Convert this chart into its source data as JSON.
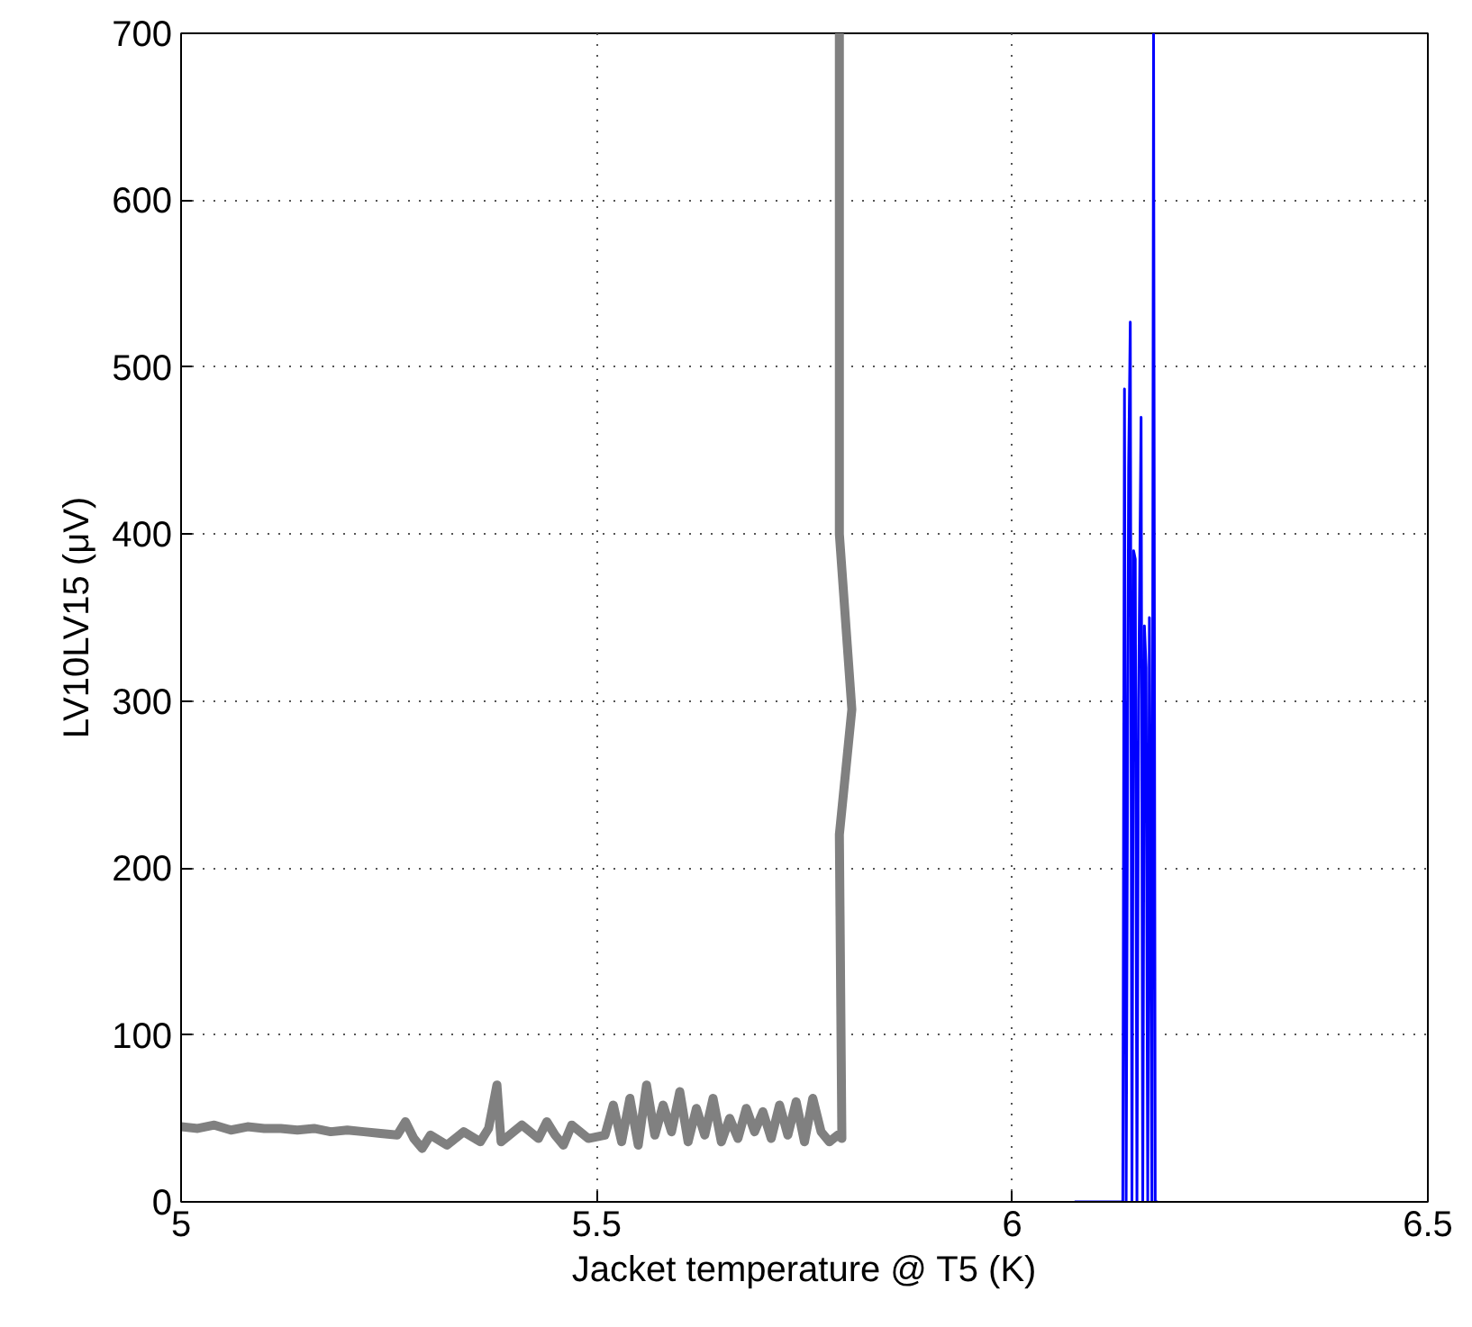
{
  "chart_data": {
    "type": "line",
    "xlabel": "Jacket temperature @ T5 (K)",
    "ylabel": "LV10LV15 (μV)",
    "xlim": [
      5,
      6.5
    ],
    "ylim": [
      0,
      700
    ],
    "xticks": [
      5,
      5.5,
      6,
      6.5
    ],
    "yticks": [
      0,
      100,
      200,
      300,
      400,
      500,
      600,
      700
    ],
    "grid": true,
    "marker": "none",
    "line_style": "solid",
    "series": [
      {
        "color": "#808080",
        "x": [
          5.0,
          5.02,
          5.04,
          5.06,
          5.08,
          5.1,
          5.12,
          5.14,
          5.16,
          5.18,
          5.2,
          5.22,
          5.24,
          5.26,
          5.27,
          5.28,
          5.29,
          5.3,
          5.32,
          5.34,
          5.36,
          5.37,
          5.38,
          5.385,
          5.39,
          5.41,
          5.43,
          5.44,
          5.45,
          5.46,
          5.47,
          5.49,
          5.51,
          5.52,
          5.53,
          5.54,
          5.55,
          5.56,
          5.57,
          5.58,
          5.59,
          5.6,
          5.61,
          5.62,
          5.63,
          5.64,
          5.65,
          5.66,
          5.67,
          5.68,
          5.69,
          5.7,
          5.71,
          5.72,
          5.73,
          5.74,
          5.75,
          5.76,
          5.77,
          5.78,
          5.79,
          5.795,
          5.792,
          5.807,
          5.792,
          5.792
        ],
        "values": [
          45,
          44,
          46,
          43,
          45,
          44,
          44,
          43,
          44,
          42,
          43,
          42,
          41,
          40,
          48,
          38,
          32,
          40,
          34,
          42,
          36,
          44,
          70,
          36,
          38,
          46,
          38,
          48,
          40,
          34,
          46,
          38,
          40,
          58,
          36,
          62,
          34,
          70,
          40,
          58,
          42,
          66,
          36,
          56,
          40,
          62,
          36,
          50,
          38,
          56,
          42,
          54,
          38,
          58,
          40,
          60,
          36,
          62,
          42,
          36,
          40,
          38,
          220,
          295,
          400,
          700
        ]
      },
      {
        "color": "#0000ff",
        "x": [
          6.075,
          6.133,
          6.135,
          6.137,
          6.14,
          6.142,
          6.144,
          6.146,
          6.148,
          6.15,
          6.152,
          6.155,
          6.157,
          6.159,
          6.161,
          6.163,
          6.165,
          6.168,
          6.17,
          6.172,
          6.175
        ],
        "values": [
          0,
          0,
          487,
          0,
          440,
          527,
          0,
          390,
          385,
          0,
          300,
          470,
          0,
          345,
          320,
          0,
          350,
          0,
          700,
          0,
          0
        ]
      }
    ]
  }
}
